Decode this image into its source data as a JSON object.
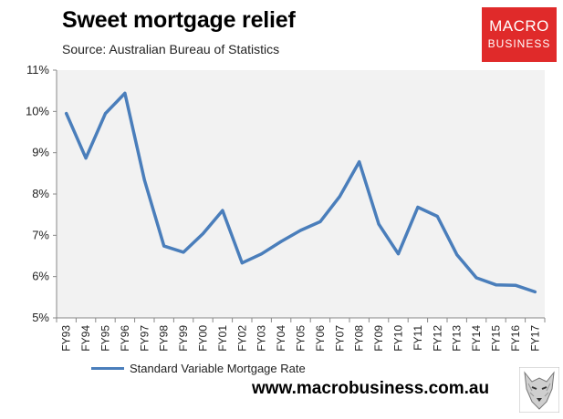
{
  "header": {
    "title": "Sweet mortgage relief",
    "subtitle": "Source: Australian Bureau of Statistics"
  },
  "logo": {
    "line1": "MACRO",
    "line2": "BUSINESS",
    "color": "#e02a2a"
  },
  "footer": {
    "website": "www.macrobusiness.com.au",
    "wolf_icon": "wolf-logo-icon"
  },
  "chart_data": {
    "type": "line",
    "title": "Sweet mortgage relief",
    "categories": [
      "FY93",
      "FY94",
      "FY95",
      "FY96",
      "FY97",
      "FY98",
      "FY99",
      "FY00",
      "FY01",
      "FY02",
      "FY03",
      "FY04",
      "FY05",
      "FY06",
      "FY07",
      "FY08",
      "FY09",
      "FY10",
      "FY11",
      "FY12",
      "FY13",
      "FY14",
      "FY15",
      "FY16",
      "FY17"
    ],
    "series": [
      {
        "name": "Standard Variable Mortgage Rate",
        "color": "#4a7ebb",
        "values": [
          9.95,
          8.87,
          9.95,
          10.44,
          8.34,
          6.74,
          6.59,
          7.04,
          7.6,
          6.33,
          6.55,
          6.85,
          7.12,
          7.33,
          7.94,
          8.78,
          7.27,
          6.55,
          7.68,
          7.46,
          6.53,
          5.97,
          5.8,
          5.79,
          5.63
        ]
      }
    ],
    "ylim": [
      5,
      11
    ],
    "yticks": [
      "5%",
      "6%",
      "7%",
      "8%",
      "9%",
      "10%",
      "11%"
    ],
    "grid": false,
    "plot_background": "#f2f2f2",
    "legend_position": "bottom-left"
  }
}
